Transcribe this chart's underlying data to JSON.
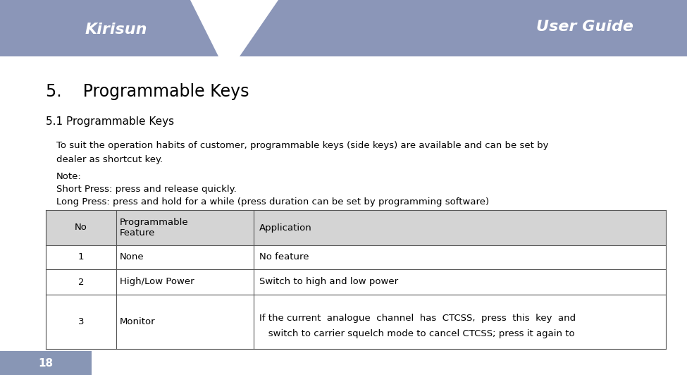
{
  "page_width": 9.75,
  "page_height": 5.32,
  "dpi": 100,
  "bg_color": "#ffffff",
  "header_bg_color": "#8b96b8",
  "footer_bg_color": "#8896b5",
  "header_text_color": "#ffffff",
  "footer_text_color": "#ffffff",
  "header_text": "User Guide",
  "footer_page_num": "18",
  "title_text": "5.    Programmable Keys",
  "subtitle_text": "5.1 Programmable Keys",
  "body_line1": "To suit the operation habits of customer, programmable keys (side keys) are available and can be set by",
  "body_line2": "dealer as shortcut key.",
  "body_note": "Note:",
  "body_short": "Short Press: press and release quickly.",
  "body_long": "Long Press: press and hold for a while (press duration can be set by programming software)",
  "table_header": [
    "No",
    "Programmable\nFeature",
    "Application"
  ],
  "table_rows": [
    [
      "1",
      "None",
      "No feature"
    ],
    [
      "2",
      "High/Low Power",
      "Switch to high and low power"
    ],
    [
      "3",
      "Monitor",
      "If the current  analogue  channel  has  CTCSS,  press  this  key  and\n   switch to carrier squelch mode to cancel CTCSS; press it again to"
    ]
  ]
}
